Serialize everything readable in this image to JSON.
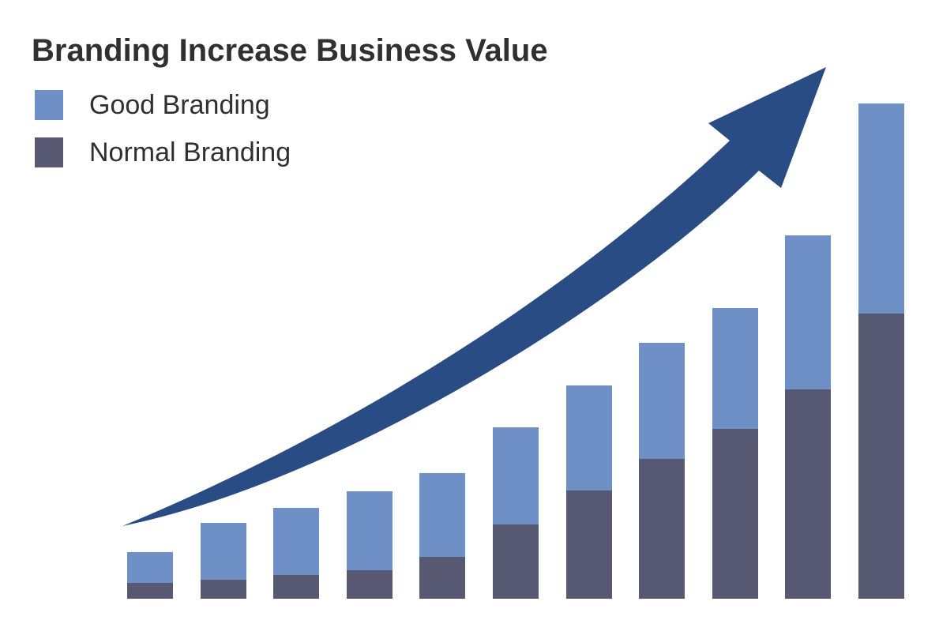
{
  "title": "Branding Increase Business Value",
  "legend": [
    {
      "label": "Good Branding",
      "color": "#6E90C7"
    },
    {
      "label": "Normal Branding",
      "color": "#575871"
    }
  ],
  "colors": {
    "good_branding": "#6E90C7",
    "normal_branding": "#575871",
    "arrow": "#294C85",
    "text": "#303030",
    "background": "#FFFFFF"
  },
  "annotations": [
    {
      "name": "growth-arrow",
      "description": "large curved swoosh arrow rising from lower-left to upper-right"
    }
  ],
  "chart_data": {
    "type": "bar",
    "stacked": true,
    "title": "Branding Increase Business Value",
    "xlabel": "",
    "ylabel": "",
    "num_bars": 11,
    "axes_visible": false,
    "grid": false,
    "legend_position": "top-left",
    "value_units": "arbitrary (no axis scale shown; values estimated from bar heights in px)",
    "ylim": [
      0,
      650
    ],
    "series": [
      {
        "name": "Normal Branding",
        "color": "#575871",
        "values": [
          20,
          24,
          30,
          36,
          53,
          94,
          137,
          177,
          215,
          265,
          361
        ]
      },
      {
        "name": "Good Branding",
        "color": "#6E90C7",
        "values": [
          39,
          72,
          85,
          100,
          106,
          123,
          133,
          147,
          153,
          195,
          266
        ]
      }
    ],
    "totals": [
      59,
      96,
      115,
      136,
      159,
      217,
      270,
      324,
      368,
      460,
      627
    ]
  }
}
